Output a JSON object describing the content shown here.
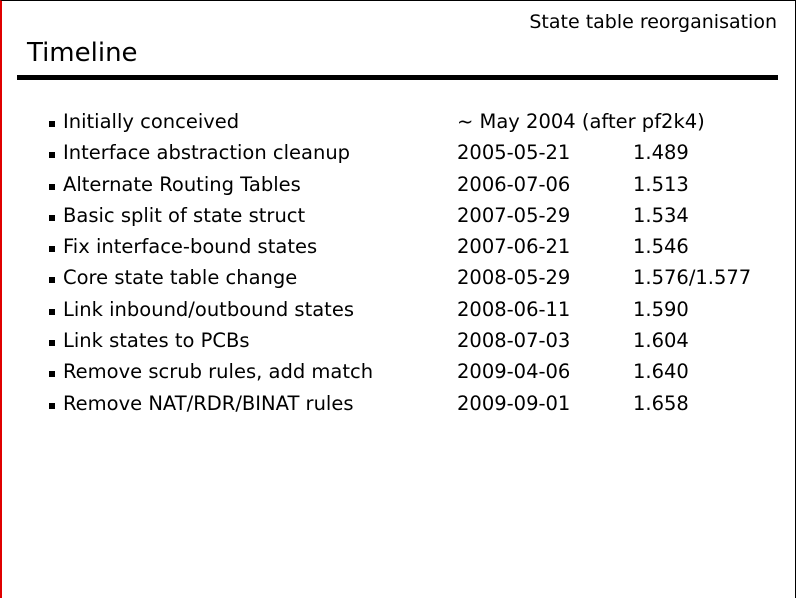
{
  "slide": {
    "header": "State table reorganisation",
    "title": "Timeline",
    "items": [
      {
        "label": "Initially conceived",
        "date": "~ May 2004 (after pf2k4)",
        "revision": ""
      },
      {
        "label": "Interface abstraction cleanup",
        "date": "2005-05-21",
        "revision": "1.489"
      },
      {
        "label": "Alternate Routing Tables",
        "date": "2006-07-06",
        "revision": "1.513"
      },
      {
        "label": "Basic split of state struct",
        "date": "2007-05-29",
        "revision": "1.534"
      },
      {
        "label": "Fix interface-bound states",
        "date": "2007-06-21",
        "revision": "1.546"
      },
      {
        "label": "Core state table change",
        "date": "2008-05-29",
        "revision": "1.576/1.577"
      },
      {
        "label": "Link inbound/outbound states",
        "date": "2008-06-11",
        "revision": "1.590"
      },
      {
        "label": "Link states to PCBs",
        "date": "2008-07-03",
        "revision": "1.604"
      },
      {
        "label": "Remove scrub rules, add match",
        "date": "2009-04-06",
        "revision": "1.640"
      },
      {
        "label": "Remove NAT/RDR/BINAT rules",
        "date": "2009-09-01",
        "revision": "1.658"
      }
    ]
  }
}
